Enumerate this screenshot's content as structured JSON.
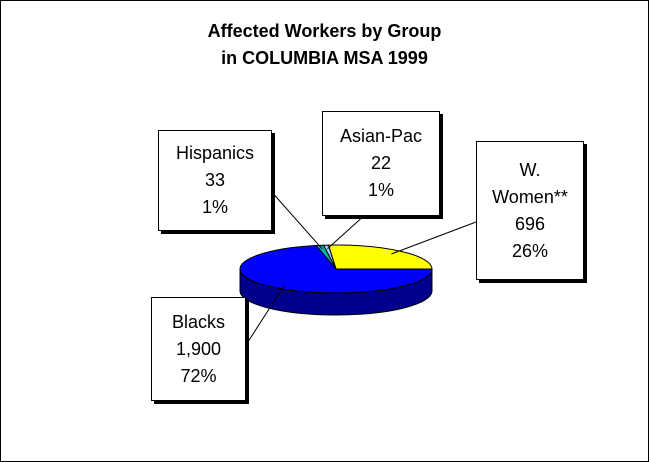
{
  "chart_data": {
    "type": "pie",
    "title": "Affected Workers by Group",
    "subtitle": "in COLUMBIA MSA 1999",
    "slices": [
      {
        "name": "W. Women**",
        "value": 696,
        "percent": "26%",
        "value_label": "696",
        "color": "#ffff00"
      },
      {
        "name": "Blacks",
        "value": 1900,
        "percent": "72%",
        "value_label": "1,900",
        "color": "#0000ff"
      },
      {
        "name": "Hispanics",
        "value": 33,
        "percent": "1%",
        "value_label": "33",
        "color": "#00b0b0"
      },
      {
        "name": "Asian-Pac",
        "value": 22,
        "percent": "1%",
        "value_label": "22",
        "color": "#99ccff"
      }
    ]
  }
}
